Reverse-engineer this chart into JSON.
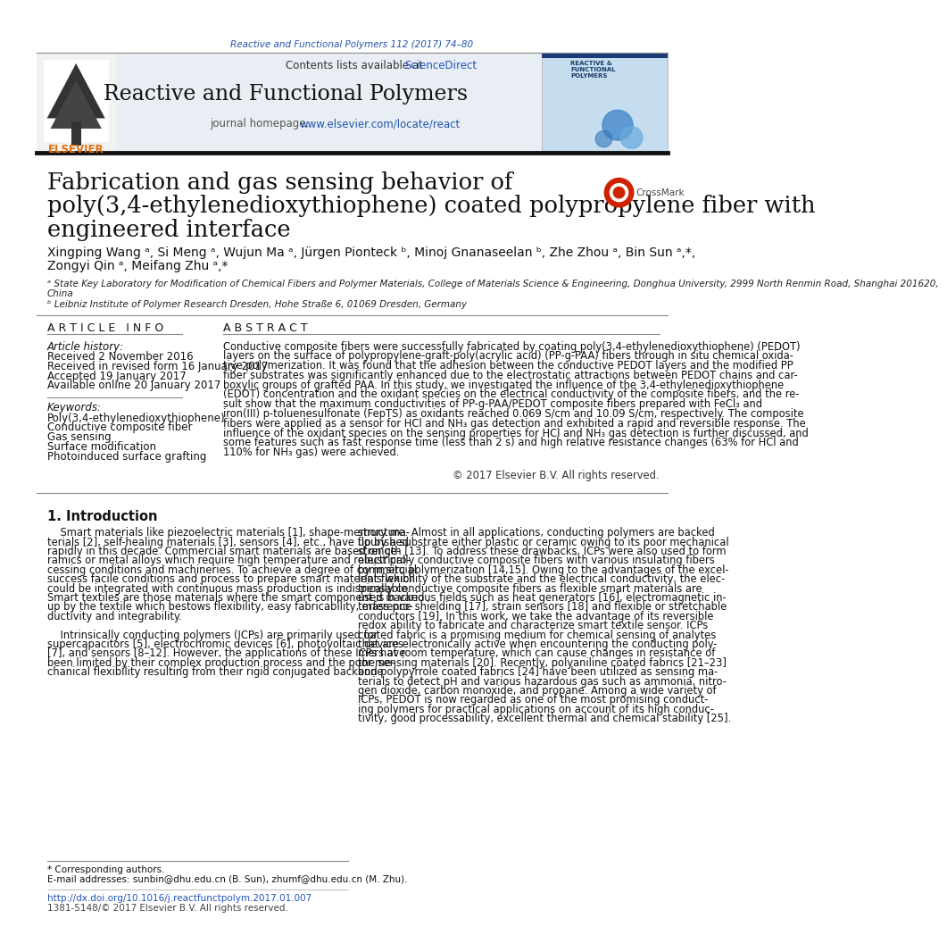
{
  "page_bg": "#ffffff",
  "journal_ref": "Reactive and Functional Polymers 112 (2017) 74–80",
  "journal_ref_color": "#2255aa",
  "header_bg": "#e8eef4",
  "journal_title": "Reactive and Functional Polymers",
  "journal_homepage_url": "www.elsevier.com/locate/react",
  "journal_homepage_url_color": "#2255aa",
  "article_title_line1": "Fabrication and gas sensing behavior of",
  "article_title_line2": "poly(3,4-ethylenedioxythiophene) coated polypropylene fiber with",
  "article_title_line3": "engineered interface",
  "authors_line1": "Xingping Wang ᵃ, Si Meng ᵃ, Wujun Ma ᵃ, Jürgen Pionteck ᵇ, Minoj Gnanaseelan ᵇ, Zhe Zhou ᵃ, Bin Sun ᵃ,*,",
  "authors_line2": "Zongyi Qin ᵃ, Meifang Zhu ᵃ,*",
  "affil_a": "ᵃ State Key Laboratory for Modification of Chemical Fibers and Polymer Materials, College of Materials Science & Engineering, Donghua University, 2999 North Renmin Road, Shanghai 201620,",
  "affil_a2": "China",
  "affil_b": "ᵇ Leibniz Institute of Polymer Research Dresden, Hohe Straße 6, 01069 Dresden, Germany",
  "section_article_info": "A R T I C L E   I N F O",
  "section_abstract": "A B S T R A C T",
  "article_history_label": "Article history:",
  "article_history": [
    "Received 2 November 2016",
    "Received in revised form 16 January 2017",
    "Accepted 19 January 2017",
    "Available online 20 January 2017"
  ],
  "keywords_label": "Keywords:",
  "keywords": [
    "Poly(3,4-ethylenedioxythiophene)",
    "Conductive composite fiber",
    "Gas sensing",
    "Surface modification",
    "Photoinduced surface grafting"
  ],
  "abstract_lines": [
    "Conductive composite fibers were successfully fabricated by coating poly(3,4-ethylenedioxythiophene) (PEDOT)",
    "layers on the surface of polypropylene-graft-poly(acrylic acid) (PP-g-PAA) fibers through in situ chemical oxida-",
    "tive polymerization. It was found that the adhesion between the conductive PEDOT layers and the modified PP",
    "fiber substrates was significantly enhanced due to the electrostatic attractions between PEDOT chains and car-",
    "boxylic groups of grafted PAA. In this study, we investigated the influence of the 3,4-ethylenedioxythiophene",
    "(EDOT) concentration and the oxidant species on the electrical conductivity of the composite fibers, and the re-",
    "sult show that the maximum conductivities of PP-g-PAA/PEDOT composite fibers prepared with FeCl₃ and",
    "iron(III) p-toluenesulfonate (FepTS) as oxidants reached 0.069 S/cm and 10.09 S/cm, respectively. The composite",
    "fibers were applied as a sensor for HCl and NH₃ gas detection and exhibited a rapid and reversible response. The",
    "influence of the oxidant species on the sensing properties for HCl and NH₃ gas detection is further discussed, and",
    "some features such as fast response time (less than 2 s) and high relative resistance changes (63% for HCl and",
    "110% for NH₃ gas) were achieved."
  ],
  "copyright": "© 2017 Elsevier B.V. All rights reserved.",
  "intro_heading": "1. Introduction",
  "intro_col1": [
    "    Smart materials like piezoelectric materials [1], shape-memory ma-",
    "terials [2], self-healing materials [3], sensors [4], etc., have flourished",
    "rapidly in this decade. Commercial smart materials are based on ce-",
    "ramics or metal alloys which require high temperature and robust pro-",
    "cessing conditions and machineries. To achieve a degree of commercial",
    "success facile conditions and process to prepare smart materials which",
    "could be integrated with continuous mass production is indispensable.",
    "Smart textiles are those materials where the smart component is backed",
    "up by the textile which bestows flexibility, easy fabricability, mass pro-",
    "ductivity and integrability.",
    "",
    "    Intrinsically conducting polymers (ICPs) are primarily used for",
    "supercapacitors [5], electrochromic devices [6], photovoltaic devices",
    "[7], and sensors [8–12]. However, the applications of these ICPs have",
    "been limited by their complex production process and the poor me-",
    "chanical flexibility resulting from their rigid conjugated backbone"
  ],
  "intro_col2": [
    "structure. Almost in all applications, conducting polymers are backed",
    "up by a substrate either plastic or ceramic owing to its poor mechanical",
    "strength [13]. To address these drawbacks, ICPs were also used to form",
    "electrically conductive composite fibers with various insulating fibers",
    "by in situ polymerization [14,15]. Owing to the advantages of the excel-",
    "lent flexibility of the substrate and the electrical conductivity, the elec-",
    "trically conductive composite fibers as flexible smart materials are",
    "used in various fields such as heat generators [16], electromagnetic in-",
    "terference shielding [17], strain sensors [18] and flexible or stretchable",
    "conductors [19]. In this work, we take the advantage of its reversible",
    "redox ability to fabricate and characterize smart textile sensor. ICPs",
    "coated fabric is a promising medium for chemical sensing of analytes",
    "that are electronically active when encountering the conducting poly-",
    "mers at room temperature, which can cause changes in resistance of",
    "the sensing materials [20]. Recently, polyaniline coated fabrics [21–23]",
    "and polypyrrole coated fabrics [24] have been utilized as sensing ma-",
    "terials to detect pH and various hazardous gas such as ammonia, nitro-",
    "gen dioxide, carbon monoxide, and propane. Among a wide variety of",
    "ICPs, PEDOT is now regarded as one of the most promising conduct-",
    "ing polymers for practical applications on account of its high conduc-",
    "tivity, good processability, excellent thermal and chemical stability [25]."
  ],
  "footnote_star": "* Corresponding authors.",
  "footnote_email": "E-mail addresses: sunbin@dhu.edu.cn (B. Sun), zhumf@dhu.edu.cn (M. Zhu).",
  "footnote_doi": "http://dx.doi.org/10.1016/j.reactfunctpolym.2017.01.007",
  "footnote_issn": "1381-5148/© 2017 Elsevier B.V. All rights reserved.",
  "elsevier_color": "#e07010",
  "sciencedirect_color": "#2255bb",
  "link_color": "#2255bb",
  "text_color": "#111111",
  "gray_color": "#555555",
  "separator_color": "#888888",
  "cover_bg": "#c5ddef",
  "cover_text_color": "#1a3a6a"
}
